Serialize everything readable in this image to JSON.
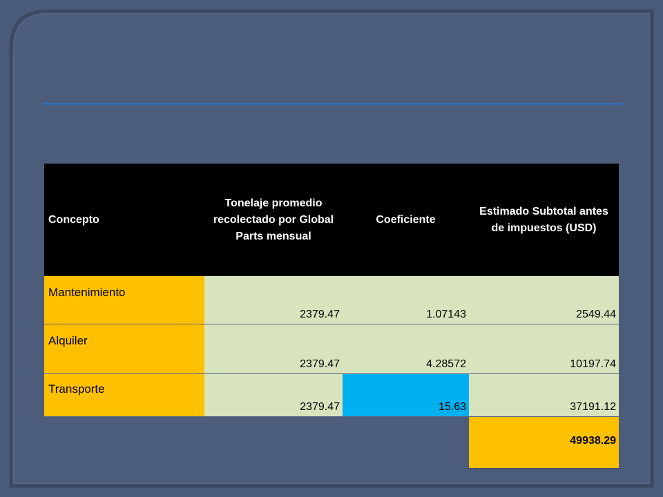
{
  "table": {
    "headers": [
      "Concepto",
      "Tonelaje promedio recolectado por Global Parts mensual",
      "Coeficiente",
      "Estimado Subtotal antes de impuestos (USD)"
    ],
    "rows": [
      {
        "concepto": "Mantenimiento",
        "tonelaje": "2379.47",
        "coeficiente": "1.07143",
        "subtotal": "2549.44"
      },
      {
        "concepto": "Alquiler",
        "tonelaje": "2379.47",
        "coeficiente": "4.28572",
        "subtotal": "10197.74"
      },
      {
        "concepto": "Transporte",
        "tonelaje": "2379.47",
        "coeficiente": "15.63",
        "subtotal": "37191.12"
      }
    ],
    "total": "49938.29"
  },
  "colors": {
    "slide_background": "#4a5a78",
    "frame": "#3f4d68",
    "header_background": "#000000",
    "concept_cells": "#ffc000",
    "value_cells": "#d7e4bd",
    "highlight_cell": "#00b0f0",
    "total_cell": "#ffc000",
    "rule": "#3a72b8"
  }
}
